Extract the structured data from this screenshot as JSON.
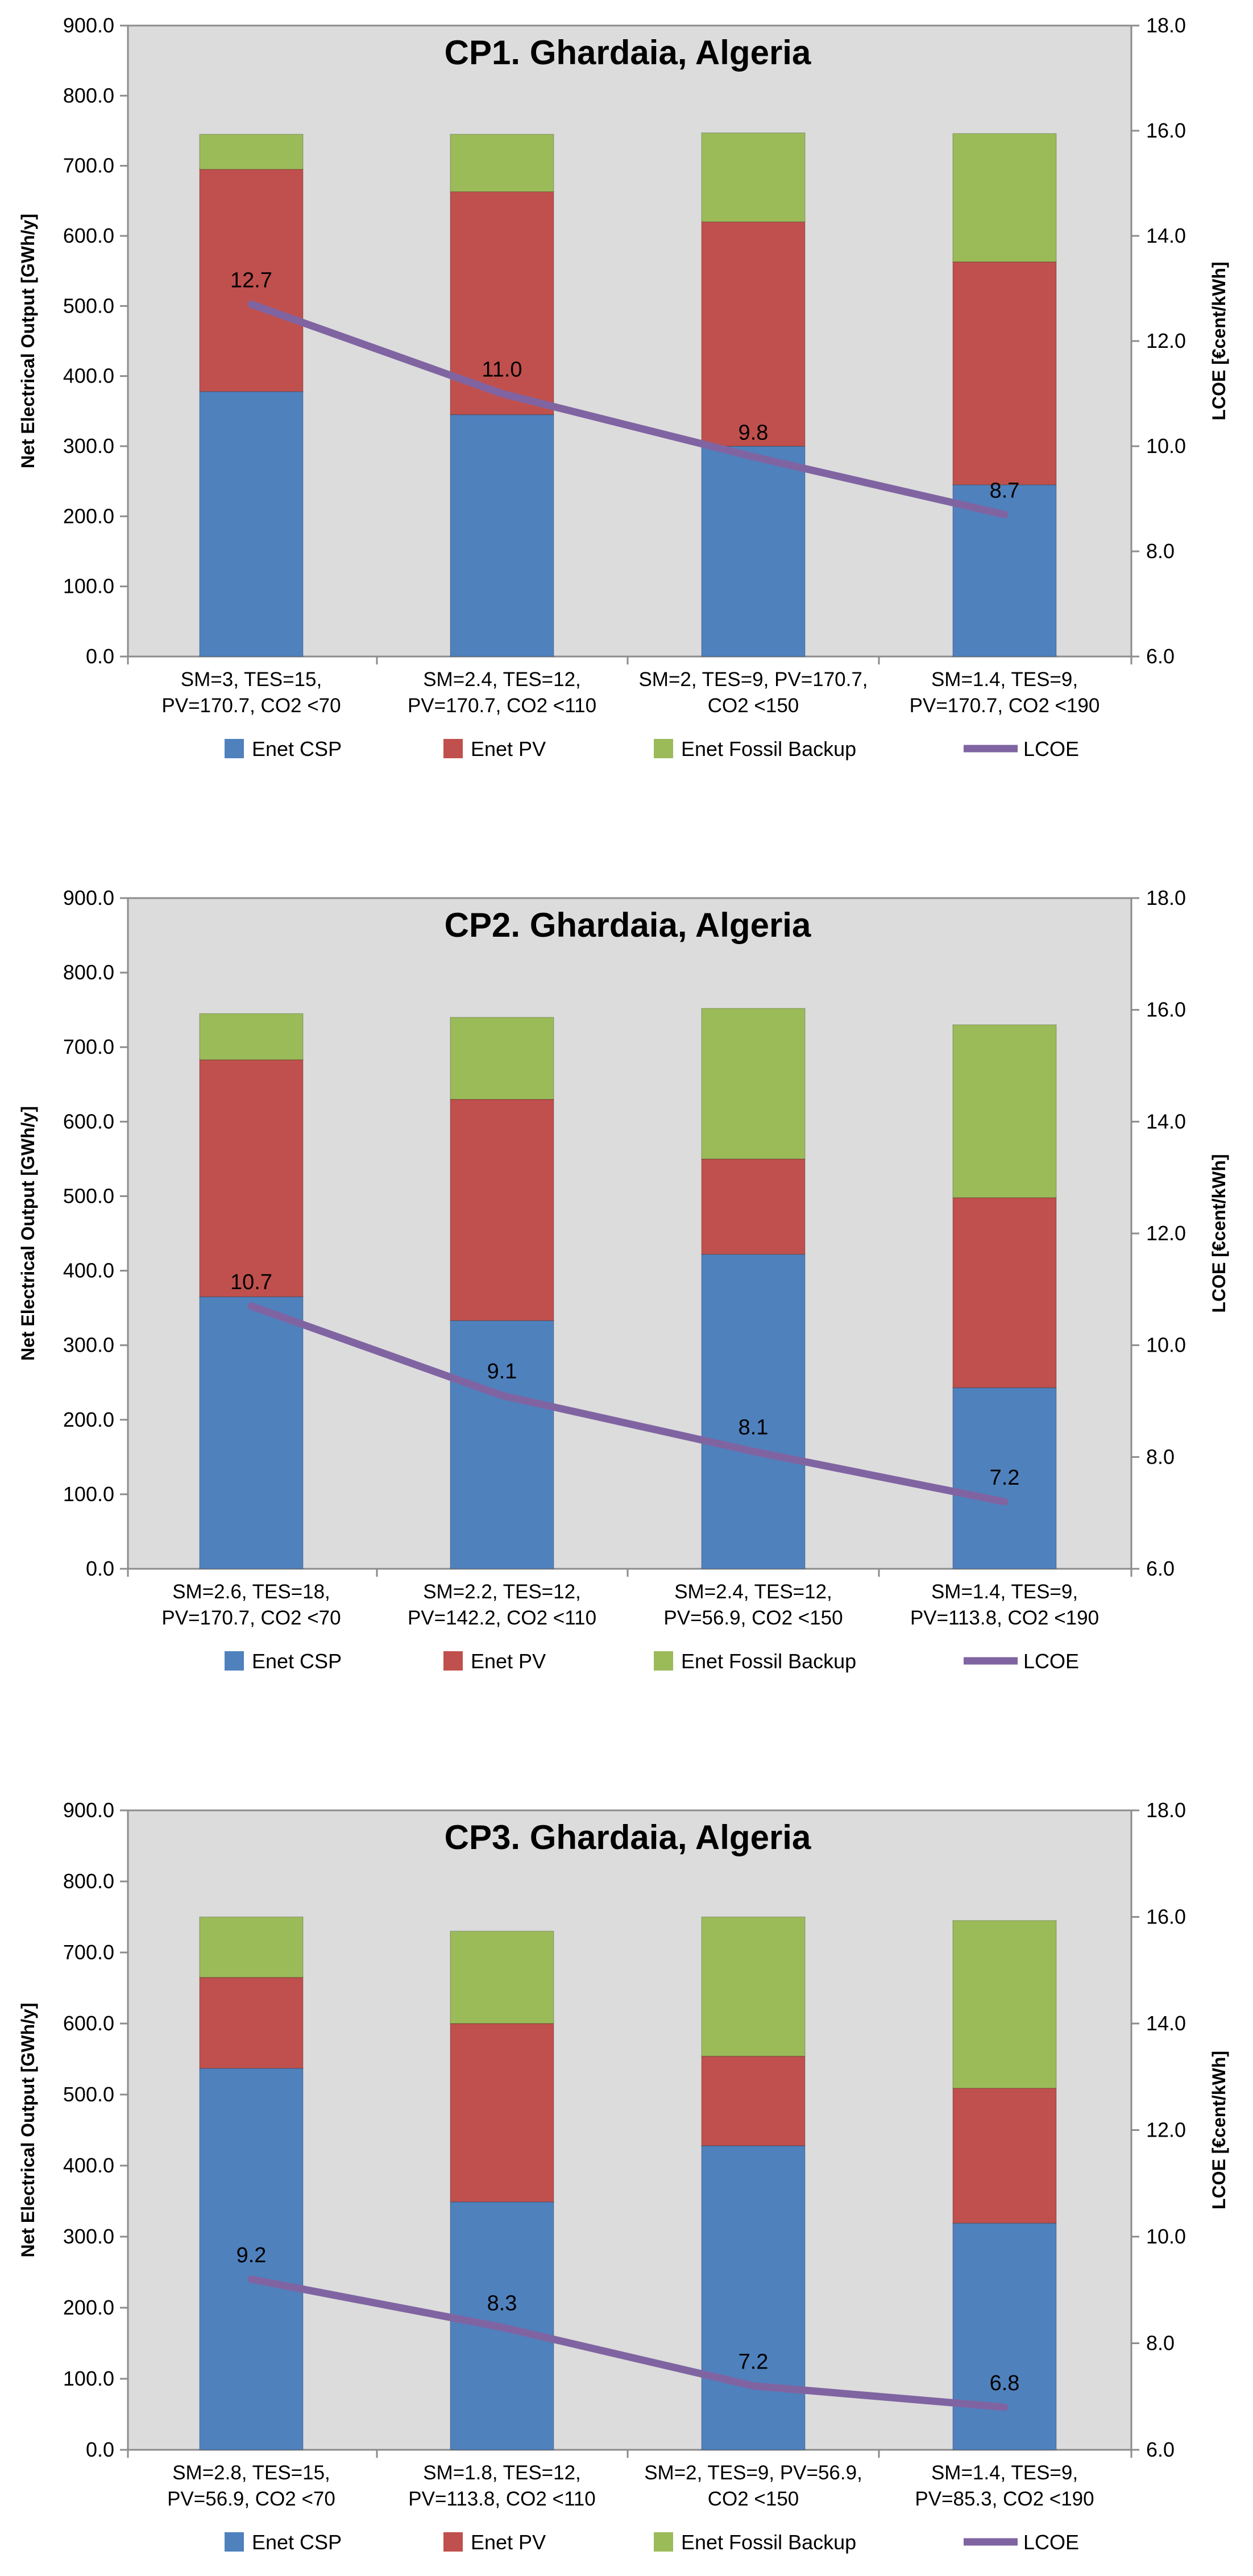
{
  "colors": {
    "csp": "#4F81BD",
    "pv": "#C0504D",
    "fossil": "#9BBB59",
    "lcoe": "#8064A2",
    "plot_bg": "#DCDCDC"
  },
  "chart_data": [
    {
      "type": "bar",
      "stacked": true,
      "title": "CP1. Ghardaia, Algeria",
      "ylabel": "Net Electrical Output [GWh/y]",
      "y2label": "LCOE [€cent/kWh]",
      "ylim": [
        0,
        900
      ],
      "y2lim": [
        6,
        18
      ],
      "yticks": [
        "0.0",
        "100.0",
        "200.0",
        "300.0",
        "400.0",
        "500.0",
        "600.0",
        "700.0",
        "800.0",
        "900.0"
      ],
      "y2ticks": [
        "6.0",
        "8.0",
        "10.0",
        "12.0",
        "14.0",
        "16.0",
        "18.0"
      ],
      "grid": false,
      "categories": [
        [
          "SM=3, TES=15,",
          "PV=170.7, CO2 <70"
        ],
        [
          "SM=2.4, TES=12,",
          "PV=170.7, CO2 <110"
        ],
        [
          "SM=2, TES=9, PV=170.7,",
          "CO2 <150"
        ],
        [
          "SM=1.4, TES=9,",
          "PV=170.7, CO2 <190"
        ]
      ],
      "series": [
        {
          "name": "Enet CSP",
          "values": [
            378,
            345,
            300,
            245
          ]
        },
        {
          "name": "Enet PV",
          "values": [
            317,
            318,
            320,
            318
          ]
        },
        {
          "name": "Enet Fossil Backup",
          "values": [
            50,
            82,
            127,
            183
          ]
        }
      ],
      "line": {
        "name": "LCOE",
        "values": [
          12.7,
          11.0,
          9.8,
          8.7
        ],
        "labels": [
          "12.7",
          "11.0",
          "9.8",
          "8.7"
        ]
      },
      "legend": "bottom"
    },
    {
      "type": "bar",
      "stacked": true,
      "title": "CP2. Ghardaia, Algeria",
      "ylabel": "Net Electrical Output [GWh/y]",
      "y2label": "LCOE [€cent/kWh]",
      "ylim": [
        0,
        900
      ],
      "y2lim": [
        6,
        18
      ],
      "yticks": [
        "0.0",
        "100.0",
        "200.0",
        "300.0",
        "400.0",
        "500.0",
        "600.0",
        "700.0",
        "800.0",
        "900.0"
      ],
      "y2ticks": [
        "6.0",
        "8.0",
        "10.0",
        "12.0",
        "14.0",
        "16.0",
        "18.0"
      ],
      "grid": false,
      "categories": [
        [
          "SM=2.6, TES=18,",
          "PV=170.7, CO2 <70"
        ],
        [
          "SM=2.2, TES=12,",
          "PV=142.2, CO2 <110"
        ],
        [
          "SM=2.4, TES=12,",
          "PV=56.9, CO2 <150"
        ],
        [
          "SM=1.4, TES=9,",
          "PV=113.8, CO2 <190"
        ]
      ],
      "series": [
        {
          "name": "Enet CSP",
          "values": [
            365,
            333,
            422,
            243
          ]
        },
        {
          "name": "Enet PV",
          "values": [
            318,
            297,
            128,
            255
          ]
        },
        {
          "name": "Enet Fossil Backup",
          "values": [
            62,
            110,
            202,
            232
          ]
        }
      ],
      "line": {
        "name": "LCOE",
        "values": [
          10.7,
          9.1,
          8.1,
          7.2
        ],
        "labels": [
          "10.7",
          "9.1",
          "8.1",
          "7.2"
        ]
      },
      "legend": "bottom"
    },
    {
      "type": "bar",
      "stacked": true,
      "title": "CP3. Ghardaia, Algeria",
      "ylabel": "Net Electrical Output [GWh/y]",
      "y2label": "LCOE [€cent/kWh]",
      "ylim": [
        0,
        900
      ],
      "y2lim": [
        6,
        18
      ],
      "yticks": [
        "0.0",
        "100.0",
        "200.0",
        "300.0",
        "400.0",
        "500.0",
        "600.0",
        "700.0",
        "800.0",
        "900.0"
      ],
      "y2ticks": [
        "6.0",
        "8.0",
        "10.0",
        "12.0",
        "14.0",
        "16.0",
        "18.0"
      ],
      "grid": false,
      "categories": [
        [
          "SM=2.8, TES=15,",
          "PV=56.9, CO2 <70"
        ],
        [
          "SM=1.8, TES=12,",
          "PV=113.8, CO2 <110"
        ],
        [
          "SM=2, TES=9, PV=56.9,",
          "CO2 <150"
        ],
        [
          "SM=1.4, TES=9,",
          "PV=85.3, CO2 <190"
        ]
      ],
      "series": [
        {
          "name": "Enet CSP",
          "values": [
            537,
            349,
            428,
            319
          ]
        },
        {
          "name": "Enet PV",
          "values": [
            128,
            251,
            126,
            190
          ]
        },
        {
          "name": "Enet Fossil Backup",
          "values": [
            85,
            130,
            196,
            236
          ]
        }
      ],
      "line": {
        "name": "LCOE",
        "values": [
          9.2,
          8.3,
          7.2,
          6.8
        ],
        "labels": [
          "9.2",
          "8.3",
          "7.2",
          "6.8"
        ]
      },
      "legend": "bottom"
    }
  ]
}
